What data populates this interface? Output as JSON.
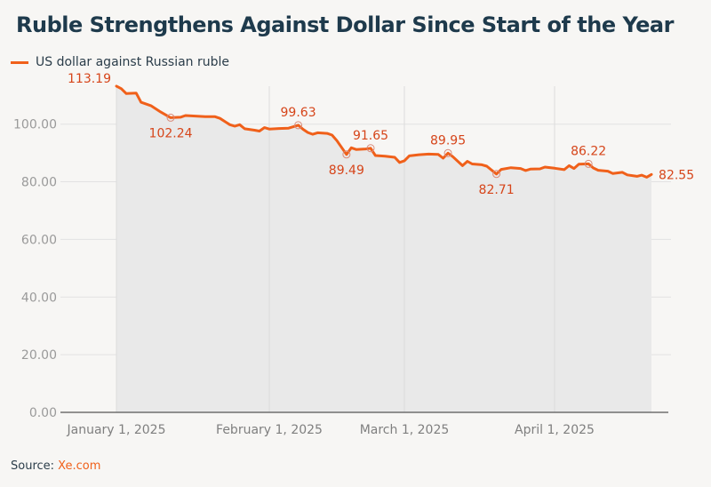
{
  "title": "Ruble Strengthens Against Dollar Since Start of the Year",
  "legend": {
    "label": "US dollar against Russian ruble",
    "color": "#f0601a"
  },
  "source": {
    "label": "Source:",
    "link_text": "Xe.com"
  },
  "colors": {
    "line": "#f0601a",
    "area": "#e9e9e9",
    "annotation": "#d6451a",
    "title": "#1e3a4c"
  },
  "chart_data": {
    "type": "area",
    "title": "Ruble Strengthens Against Dollar Since Start of the Year",
    "xlabel": "",
    "ylabel": "",
    "ylim": [
      0,
      100
    ],
    "yticks": [
      0,
      20,
      40,
      60,
      80,
      100
    ],
    "ytick_labels": [
      "0.00",
      "20.00",
      "40.00",
      "60.00",
      "80.00",
      "100.00"
    ],
    "xticks": [
      "2025-01-01",
      "2025-02-01",
      "2025-03-01",
      "2025-04-01"
    ],
    "xtick_labels": [
      "January 1, 2025",
      "February 1, 2025",
      "March 1, 2025",
      "April 1, 2025"
    ],
    "grid": true,
    "legend_position": "top-left",
    "series": [
      {
        "name": "US dollar against Russian ruble",
        "points": [
          [
            "2025-01-01",
            113.19
          ],
          [
            "2025-01-02",
            112.3
          ],
          [
            "2025-01-03",
            110.6
          ],
          [
            "2025-01-05",
            110.8
          ],
          [
            "2025-01-06",
            107.6
          ],
          [
            "2025-01-08",
            106.4
          ],
          [
            "2025-01-10",
            104.2
          ],
          [
            "2025-01-12",
            102.24
          ],
          [
            "2025-01-14",
            102.4
          ],
          [
            "2025-01-15",
            103.0
          ],
          [
            "2025-01-17",
            102.8
          ],
          [
            "2025-01-19",
            102.6
          ],
          [
            "2025-01-21",
            102.6
          ],
          [
            "2025-01-22",
            102.0
          ],
          [
            "2025-01-24",
            99.8
          ],
          [
            "2025-01-25",
            99.3
          ],
          [
            "2025-01-26",
            99.8
          ],
          [
            "2025-01-27",
            98.4
          ],
          [
            "2025-01-29",
            97.9
          ],
          [
            "2025-01-30",
            97.6
          ],
          [
            "2025-01-31",
            98.8
          ],
          [
            "2025-02-01",
            98.3
          ],
          [
            "2025-02-03",
            98.5
          ],
          [
            "2025-02-05",
            98.6
          ],
          [
            "2025-02-07",
            99.63
          ],
          [
            "2025-02-08",
            98.2
          ],
          [
            "2025-02-09",
            97.1
          ],
          [
            "2025-02-10",
            96.5
          ],
          [
            "2025-02-11",
            97.0
          ],
          [
            "2025-02-13",
            96.8
          ],
          [
            "2025-02-14",
            96.2
          ],
          [
            "2025-02-15",
            94.3
          ],
          [
            "2025-02-17",
            89.49
          ],
          [
            "2025-02-18",
            91.8
          ],
          [
            "2025-02-19",
            91.2
          ],
          [
            "2025-02-21",
            91.4
          ],
          [
            "2025-02-22",
            91.65
          ],
          [
            "2025-02-23",
            89.1
          ],
          [
            "2025-02-25",
            88.9
          ],
          [
            "2025-02-27",
            88.5
          ],
          [
            "2025-02-28",
            86.7
          ],
          [
            "2025-03-01",
            87.3
          ],
          [
            "2025-03-02",
            89.0
          ],
          [
            "2025-03-04",
            89.4
          ],
          [
            "2025-03-06",
            89.6
          ],
          [
            "2025-03-08",
            89.5
          ],
          [
            "2025-03-09",
            88.2
          ],
          [
            "2025-03-10",
            89.95
          ],
          [
            "2025-03-11",
            88.7
          ],
          [
            "2025-03-13",
            85.6
          ],
          [
            "2025-03-14",
            87.1
          ],
          [
            "2025-03-15",
            86.2
          ],
          [
            "2025-03-17",
            85.9
          ],
          [
            "2025-03-18",
            85.4
          ],
          [
            "2025-03-20",
            82.71
          ],
          [
            "2025-03-21",
            84.3
          ],
          [
            "2025-03-23",
            84.9
          ],
          [
            "2025-03-25",
            84.6
          ],
          [
            "2025-03-26",
            83.9
          ],
          [
            "2025-03-27",
            84.4
          ],
          [
            "2025-03-29",
            84.5
          ],
          [
            "2025-03-30",
            85.1
          ],
          [
            "2025-04-01",
            84.7
          ],
          [
            "2025-04-03",
            84.2
          ],
          [
            "2025-04-04",
            85.6
          ],
          [
            "2025-04-05",
            84.6
          ],
          [
            "2025-04-06",
            86.1
          ],
          [
            "2025-04-08",
            86.22
          ],
          [
            "2025-04-09",
            84.8
          ],
          [
            "2025-04-10",
            84.0
          ],
          [
            "2025-04-12",
            83.7
          ],
          [
            "2025-04-13",
            82.9
          ],
          [
            "2025-04-15",
            83.3
          ],
          [
            "2025-04-16",
            82.4
          ],
          [
            "2025-04-18",
            81.9
          ],
          [
            "2025-04-19",
            82.3
          ],
          [
            "2025-04-20",
            81.6
          ],
          [
            "2025-04-21",
            82.55
          ]
        ]
      }
    ],
    "annotations": [
      {
        "date": "2025-01-01",
        "value": 113.19,
        "label": "113.19",
        "marker": false,
        "pos": "left"
      },
      {
        "date": "2025-01-12",
        "value": 102.24,
        "label": "102.24",
        "marker": true,
        "pos": "below"
      },
      {
        "date": "2025-02-07",
        "value": 99.63,
        "label": "99.63",
        "marker": true,
        "pos": "above"
      },
      {
        "date": "2025-02-17",
        "value": 89.49,
        "label": "89.49",
        "marker": true,
        "pos": "below"
      },
      {
        "date": "2025-02-22",
        "value": 91.65,
        "label": "91.65",
        "marker": true,
        "pos": "above"
      },
      {
        "date": "2025-03-10",
        "value": 89.95,
        "label": "89.95",
        "marker": true,
        "pos": "above"
      },
      {
        "date": "2025-03-20",
        "value": 82.71,
        "label": "82.71",
        "marker": true,
        "pos": "below"
      },
      {
        "date": "2025-04-08",
        "value": 86.22,
        "label": "86.22",
        "marker": true,
        "pos": "above"
      },
      {
        "date": "2025-04-21",
        "value": 82.55,
        "label": "82.55",
        "marker": false,
        "pos": "right"
      }
    ]
  }
}
